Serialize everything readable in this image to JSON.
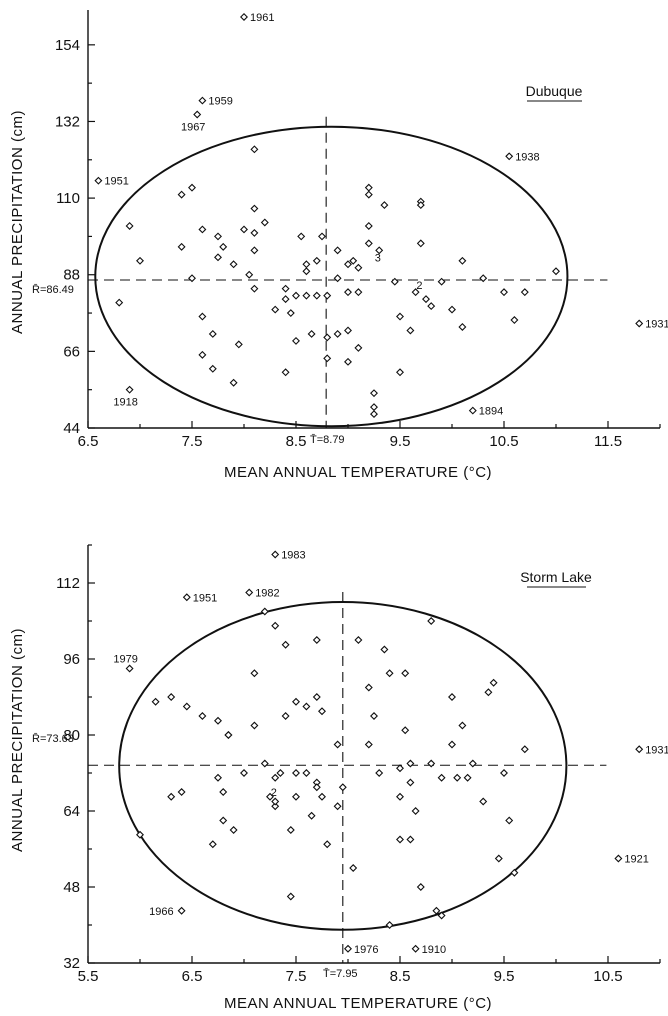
{
  "chart_data": [
    {
      "type": "scatter",
      "station": "Dubuque",
      "xlabel": "MEAN ANNUAL TEMPERATURE (°C)",
      "ylabel": "ANNUAL PRECIPITATION (cm)",
      "xticks": [
        "6.5",
        "7.5",
        "8.5",
        "9.5",
        "10.5",
        "11.5"
      ],
      "yticks": [
        "44",
        "66",
        "88",
        "110",
        "132",
        "154"
      ],
      "xlim": [
        6.5,
        12.0
      ],
      "ylim": [
        44,
        164
      ],
      "mean_t_label": "T̄=8.79",
      "mean_r_label": "R̄=86.49",
      "mean_t": 8.79,
      "mean_r": 86.49,
      "ellipse": {
        "cx": 8.84,
        "cy": 87.5,
        "rx_left": 2.27,
        "rx_right": 2.27,
        "ry_top": 43,
        "ry_bottom": 42.5
      },
      "labeled_points": [
        {
          "label": "1961",
          "x": 8.0,
          "y": 162
        },
        {
          "label": "1959",
          "x": 7.6,
          "y": 138
        },
        {
          "label": "1967",
          "x": 7.55,
          "y": 134
        },
        {
          "label": "1951",
          "x": 6.6,
          "y": 115
        },
        {
          "label": "1938",
          "x": 10.55,
          "y": 122
        },
        {
          "label": "1931",
          "x": 11.8,
          "y": 74
        },
        {
          "label": "1918",
          "x": 6.9,
          "y": 55
        },
        {
          "label": "1894",
          "x": 10.2,
          "y": 49
        }
      ],
      "points": [
        {
          "x": 6.8,
          "y": 80
        },
        {
          "x": 6.9,
          "y": 102
        },
        {
          "x": 7.0,
          "y": 92
        },
        {
          "x": 7.4,
          "y": 111
        },
        {
          "x": 7.4,
          "y": 96
        },
        {
          "x": 7.5,
          "y": 113
        },
        {
          "x": 7.5,
          "y": 87
        },
        {
          "x": 7.6,
          "y": 76
        },
        {
          "x": 7.6,
          "y": 101
        },
        {
          "x": 7.6,
          "y": 65
        },
        {
          "x": 7.7,
          "y": 71
        },
        {
          "x": 7.7,
          "y": 61
        },
        {
          "x": 7.75,
          "y": 99
        },
        {
          "x": 7.75,
          "y": 93
        },
        {
          "x": 7.8,
          "y": 96
        },
        {
          "x": 7.9,
          "y": 91
        },
        {
          "x": 7.9,
          "y": 57
        },
        {
          "x": 7.95,
          "y": 68
        },
        {
          "x": 8.0,
          "y": 101
        },
        {
          "x": 8.05,
          "y": 88
        },
        {
          "x": 8.1,
          "y": 124
        },
        {
          "x": 8.1,
          "y": 107
        },
        {
          "x": 8.1,
          "y": 100
        },
        {
          "x": 8.1,
          "y": 95
        },
        {
          "x": 8.1,
          "y": 84
        },
        {
          "x": 8.2,
          "y": 103
        },
        {
          "x": 8.3,
          "y": 78
        },
        {
          "x": 8.4,
          "y": 84
        },
        {
          "x": 8.4,
          "y": 81
        },
        {
          "x": 8.4,
          "y": 60
        },
        {
          "x": 8.45,
          "y": 77
        },
        {
          "x": 8.5,
          "y": 82
        },
        {
          "x": 8.5,
          "y": 69
        },
        {
          "x": 8.55,
          "y": 99
        },
        {
          "x": 8.6,
          "y": 91
        },
        {
          "x": 8.6,
          "y": 89
        },
        {
          "x": 8.6,
          "y": 82
        },
        {
          "x": 8.65,
          "y": 71
        },
        {
          "x": 8.7,
          "y": 92
        },
        {
          "x": 8.7,
          "y": 82
        },
        {
          "x": 8.75,
          "y": 99
        },
        {
          "x": 8.8,
          "y": 70
        },
        {
          "x": 8.8,
          "y": 64
        },
        {
          "x": 8.8,
          "y": 82
        },
        {
          "x": 8.9,
          "y": 95
        },
        {
          "x": 8.9,
          "y": 87
        },
        {
          "x": 8.9,
          "y": 71
        },
        {
          "x": 9.0,
          "y": 91
        },
        {
          "x": 9.0,
          "y": 83
        },
        {
          "x": 9.0,
          "y": 72
        },
        {
          "x": 9.0,
          "y": 63
        },
        {
          "x": 9.05,
          "y": 92
        },
        {
          "x": 9.1,
          "y": 90
        },
        {
          "x": 9.1,
          "y": 67
        },
        {
          "x": 9.1,
          "y": 83
        },
        {
          "x": 9.2,
          "y": 113
        },
        {
          "x": 9.2,
          "y": 111
        },
        {
          "x": 9.2,
          "y": 102
        },
        {
          "x": 9.2,
          "y": 97
        },
        {
          "x": 9.25,
          "y": 54
        },
        {
          "x": 9.25,
          "y": 50
        },
        {
          "x": 9.25,
          "y": 48
        },
        {
          "x": 9.3,
          "y": 95
        },
        {
          "x": 9.35,
          "y": 108
        },
        {
          "x": 9.45,
          "y": 86
        },
        {
          "x": 9.5,
          "y": 60
        },
        {
          "x": 9.5,
          "y": 76
        },
        {
          "x": 9.6,
          "y": 72
        },
        {
          "x": 9.65,
          "y": 83
        },
        {
          "x": 9.7,
          "y": 109
        },
        {
          "x": 9.7,
          "y": 108
        },
        {
          "x": 9.7,
          "y": 97
        },
        {
          "x": 9.75,
          "y": 81
        },
        {
          "x": 9.8,
          "y": 79
        },
        {
          "x": 9.9,
          "y": 86
        },
        {
          "x": 10.0,
          "y": 78
        },
        {
          "x": 10.1,
          "y": 73
        },
        {
          "x": 10.1,
          "y": 92
        },
        {
          "x": 10.3,
          "y": 87
        },
        {
          "x": 10.5,
          "y": 83
        },
        {
          "x": 10.6,
          "y": 75
        },
        {
          "x": 10.7,
          "y": 83
        },
        {
          "x": 11.0,
          "y": 89
        }
      ],
      "count_marks": [
        {
          "label": "3",
          "x": 9.2,
          "y": 93
        },
        {
          "label": "2",
          "x": 9.6,
          "y": 85
        }
      ]
    },
    {
      "type": "scatter",
      "station": "Storm Lake",
      "xlabel": "MEAN ANNUAL TEMPERATURE (°C)",
      "ylabel": "ANNUAL PRECIPITATION (cm)",
      "xticks": [
        "5.5",
        "6.5",
        "7.5",
        "8.5",
        "9.5",
        "10.5"
      ],
      "yticks": [
        "32",
        "48",
        "64",
        "80",
        "96",
        "112"
      ],
      "xlim": [
        5.5,
        11.0
      ],
      "ylim": [
        32,
        120
      ],
      "mean_t_label": "T̄=7.95",
      "mean_r_label": "R̄=73.63",
      "mean_t": 7.95,
      "mean_r": 73.63,
      "ellipse": {
        "cx": 7.95,
        "cy": 73.5,
        "rx_left": 2.15,
        "rx_right": 2.15,
        "ry_top": 34.5,
        "ry_bottom": 34.5
      },
      "labeled_points": [
        {
          "label": "1983",
          "x": 7.3,
          "y": 118
        },
        {
          "label": "1982",
          "x": 7.05,
          "y": 110
        },
        {
          "label": "1951",
          "x": 6.45,
          "y": 109
        },
        {
          "label": "1979",
          "x": 5.9,
          "y": 94
        },
        {
          "label": "1931",
          "x": 10.8,
          "y": 77
        },
        {
          "label": "1921",
          "x": 10.6,
          "y": 54
        },
        {
          "label": "1966",
          "x": 6.4,
          "y": 43
        },
        {
          "label": "1976",
          "x": 8.0,
          "y": 35
        },
        {
          "label": "1910",
          "x": 8.65,
          "y": 35
        }
      ],
      "points": [
        {
          "x": 6.0,
          "y": 59
        },
        {
          "x": 6.15,
          "y": 87
        },
        {
          "x": 6.3,
          "y": 88
        },
        {
          "x": 6.3,
          "y": 67
        },
        {
          "x": 6.4,
          "y": 68
        },
        {
          "x": 6.45,
          "y": 86
        },
        {
          "x": 6.6,
          "y": 84
        },
        {
          "x": 6.7,
          "y": 57
        },
        {
          "x": 6.75,
          "y": 83
        },
        {
          "x": 6.75,
          "y": 71
        },
        {
          "x": 6.8,
          "y": 62
        },
        {
          "x": 6.8,
          "y": 68
        },
        {
          "x": 6.85,
          "y": 80
        },
        {
          "x": 6.85,
          "y": 80
        },
        {
          "x": 6.9,
          "y": 60
        },
        {
          "x": 7.0,
          "y": 72
        },
        {
          "x": 7.1,
          "y": 93
        },
        {
          "x": 7.1,
          "y": 82
        },
        {
          "x": 7.2,
          "y": 106
        },
        {
          "x": 7.2,
          "y": 74
        },
        {
          "x": 7.25,
          "y": 67
        },
        {
          "x": 7.3,
          "y": 103
        },
        {
          "x": 7.3,
          "y": 71
        },
        {
          "x": 7.3,
          "y": 65
        },
        {
          "x": 7.3,
          "y": 66
        },
        {
          "x": 7.35,
          "y": 72
        },
        {
          "x": 7.4,
          "y": 99
        },
        {
          "x": 7.4,
          "y": 84
        },
        {
          "x": 7.45,
          "y": 46
        },
        {
          "x": 7.45,
          "y": 60
        },
        {
          "x": 7.5,
          "y": 87
        },
        {
          "x": 7.5,
          "y": 72
        },
        {
          "x": 7.5,
          "y": 67
        },
        {
          "x": 7.6,
          "y": 86
        },
        {
          "x": 7.6,
          "y": 72
        },
        {
          "x": 7.65,
          "y": 63
        },
        {
          "x": 7.7,
          "y": 100
        },
        {
          "x": 7.7,
          "y": 88
        },
        {
          "x": 7.7,
          "y": 70
        },
        {
          "x": 7.7,
          "y": 69
        },
        {
          "x": 7.75,
          "y": 85
        },
        {
          "x": 7.75,
          "y": 67
        },
        {
          "x": 7.8,
          "y": 57
        },
        {
          "x": 7.9,
          "y": 78
        },
        {
          "x": 7.9,
          "y": 65
        },
        {
          "x": 7.95,
          "y": 69
        },
        {
          "x": 8.05,
          "y": 52
        },
        {
          "x": 8.1,
          "y": 100
        },
        {
          "x": 8.2,
          "y": 90
        },
        {
          "x": 8.2,
          "y": 78
        },
        {
          "x": 8.25,
          "y": 84
        },
        {
          "x": 8.3,
          "y": 72
        },
        {
          "x": 8.35,
          "y": 98
        },
        {
          "x": 8.4,
          "y": 93
        },
        {
          "x": 8.5,
          "y": 73
        },
        {
          "x": 8.5,
          "y": 67
        },
        {
          "x": 8.5,
          "y": 58
        },
        {
          "x": 8.55,
          "y": 93
        },
        {
          "x": 8.55,
          "y": 81
        },
        {
          "x": 8.6,
          "y": 74
        },
        {
          "x": 8.6,
          "y": 70
        },
        {
          "x": 8.6,
          "y": 58
        },
        {
          "x": 8.65,
          "y": 64
        },
        {
          "x": 8.7,
          "y": 48
        },
        {
          "x": 8.8,
          "y": 104
        },
        {
          "x": 8.8,
          "y": 74
        },
        {
          "x": 8.85,
          "y": 43
        },
        {
          "x": 8.9,
          "y": 42
        },
        {
          "x": 8.9,
          "y": 71
        },
        {
          "x": 9.0,
          "y": 88
        },
        {
          "x": 9.0,
          "y": 78
        },
        {
          "x": 9.05,
          "y": 71
        },
        {
          "x": 9.1,
          "y": 82
        },
        {
          "x": 9.15,
          "y": 71
        },
        {
          "x": 9.2,
          "y": 74
        },
        {
          "x": 9.3,
          "y": 66
        },
        {
          "x": 9.35,
          "y": 89
        },
        {
          "x": 9.4,
          "y": 91
        },
        {
          "x": 9.45,
          "y": 54
        },
        {
          "x": 9.5,
          "y": 72
        },
        {
          "x": 9.55,
          "y": 62
        },
        {
          "x": 9.6,
          "y": 51
        },
        {
          "x": 9.7,
          "y": 77
        },
        {
          "x": 8.4,
          "y": 40
        }
      ],
      "count_marks": [
        {
          "label": "2",
          "x": 7.2,
          "y": 68
        }
      ]
    }
  ]
}
